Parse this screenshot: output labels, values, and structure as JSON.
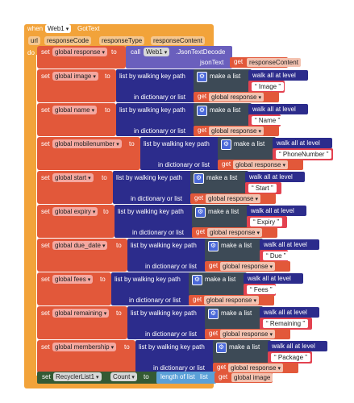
{
  "event": {
    "when": "when",
    "component": "Web1",
    "event_name": "GotText",
    "params": [
      "url",
      "responseCode",
      "responseType",
      "responseContent"
    ],
    "do": "do"
  },
  "labels": {
    "set": "set",
    "to": "to",
    "get": "get",
    "call": "call",
    "list_by_walking": "list by walking key path",
    "in_dictionary": "in dictionary or list",
    "make_a_list": "make a list",
    "walk_all": "walk all at level",
    "length_of_list": "length of list",
    "list": "list",
    "json_text": "jsonText"
  },
  "first": {
    "var": "global response",
    "component": "Web1",
    "method": ".JsonTextDecode",
    "arg": "responseContent"
  },
  "rows": [
    {
      "var": "global image",
      "key": "Image",
      "source": "global response"
    },
    {
      "var": "global name",
      "key": "Name",
      "source": "global response"
    },
    {
      "var": "global mobilenumber",
      "key": "PhoneNumber",
      "source": "global response"
    },
    {
      "var": "global start",
      "key": "Start",
      "source": "global response"
    },
    {
      "var": "global expiry",
      "key": "Expiry",
      "source": "global response"
    },
    {
      "var": "global due_date",
      "key": "Due",
      "source": "global response"
    },
    {
      "var": "global fees",
      "key": "Fees",
      "source": "global response"
    },
    {
      "var": "global remaining",
      "key": "Remaining",
      "source": "global response"
    },
    {
      "var": "global membership",
      "key": "Package",
      "source": "global response"
    }
  ],
  "last": {
    "component": "RecyclerList1",
    "property": "Count",
    "source": "global image"
  }
}
